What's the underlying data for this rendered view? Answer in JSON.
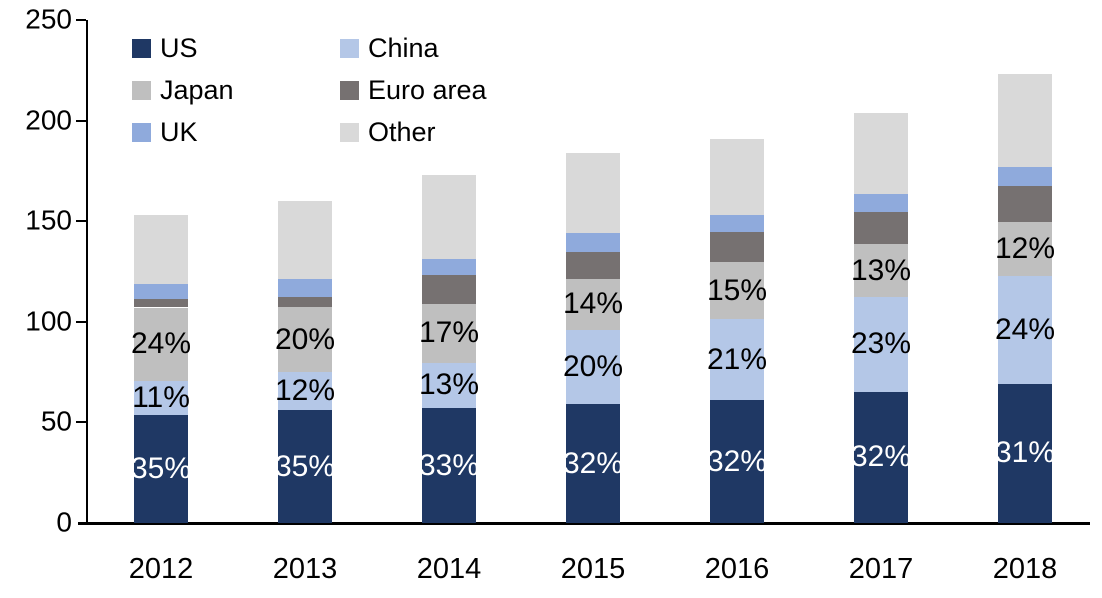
{
  "chart_data": {
    "type": "bar",
    "variant": "stacked",
    "title": "",
    "categories": [
      "2012",
      "2013",
      "2014",
      "2015",
      "2016",
      "2017",
      "2018"
    ],
    "series": [
      {
        "name": "US",
        "color": "#1F3864",
        "values": [
          53.6,
          56.0,
          57.1,
          58.9,
          61.1,
          65.3,
          69.1
        ],
        "bar_labels": [
          "35%",
          "35%",
          "33%",
          "32%",
          "32%",
          "32%",
          "31%"
        ],
        "label_color": "#FFFFFF"
      },
      {
        "name": "China",
        "color": "#B4C7E7",
        "values": [
          16.8,
          19.2,
          22.5,
          36.8,
          40.1,
          46.9,
          53.5
        ],
        "bar_labels": [
          "11%",
          "12%",
          "13%",
          "20%",
          "21%",
          "23%",
          "24%"
        ],
        "label_color": "#000000"
      },
      {
        "name": "Japan",
        "color": "#BFBFBF",
        "values": [
          36.7,
          32.0,
          29.4,
          25.8,
          28.7,
          26.5,
          26.8
        ],
        "bar_labels": [
          "24%",
          "20%",
          "17%",
          "14%",
          "15%",
          "13%",
          "12%"
        ],
        "label_color": "#000000"
      },
      {
        "name": "Euro area",
        "color": "#767171",
        "values": [
          4.1,
          5.0,
          14.1,
          13.3,
          14.9,
          16.1,
          18.2
        ],
        "bar_labels": [
          "",
          "",
          "",
          "",
          "",
          "",
          ""
        ],
        "label_color": "#000000"
      },
      {
        "name": "UK",
        "color": "#8FAADC",
        "values": [
          7.4,
          9.0,
          8.3,
          9.1,
          8.3,
          8.8,
          9.1
        ],
        "bar_labels": [
          "",
          "",
          "",
          "",
          "",
          "",
          ""
        ],
        "label_color": "#000000"
      },
      {
        "name": "Other",
        "color": "#D9D9D9",
        "values": [
          34.4,
          38.8,
          41.6,
          40.1,
          37.9,
          40.4,
          46.3
        ],
        "bar_labels": [
          "",
          "",
          "",
          "",
          "",
          "",
          ""
        ],
        "label_color": "#000000"
      }
    ],
    "totals": [
      153,
      160,
      173,
      184,
      191,
      204,
      223
    ],
    "y_axis": {
      "min": 0,
      "max": 250,
      "step": 50,
      "ticks": [
        "0",
        "50",
        "100",
        "150",
        "200",
        "250"
      ]
    },
    "xlabel": "",
    "ylabel": "",
    "grid": false,
    "legend": {
      "position": "top-left-inside",
      "columns": 2,
      "items": [
        "US",
        "China",
        "Japan",
        "Euro area",
        "UK",
        "Other"
      ]
    },
    "axis_color": "#000000",
    "background_color": "#FFFFFF"
  }
}
